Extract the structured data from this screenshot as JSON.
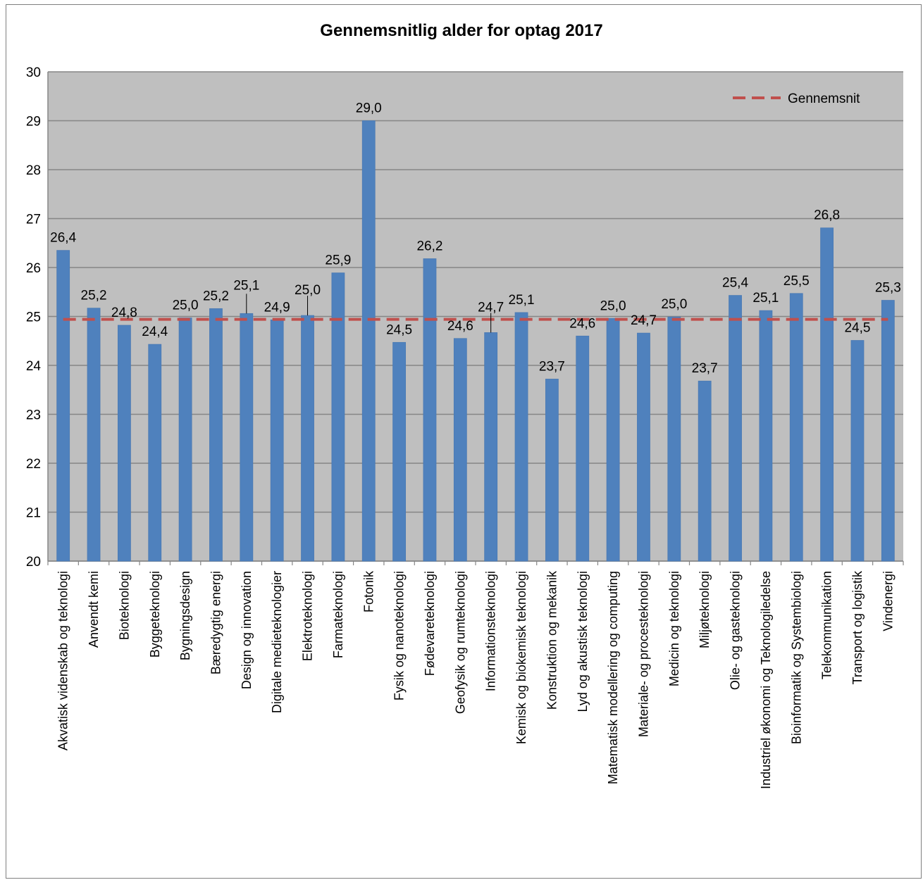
{
  "chart_data": {
    "type": "bar",
    "title": "Gennemsnitlig alder for optag 2017",
    "xlabel": "",
    "ylabel": "",
    "ylim": [
      20,
      30
    ],
    "yticks": [
      20,
      21,
      22,
      23,
      24,
      25,
      26,
      27,
      28,
      29,
      30
    ],
    "grid": true,
    "legend_position": "top-right",
    "categories": [
      "Akvatisk videnskab og teknologi",
      "Anvendt kemi",
      "Bioteknologi",
      "Byggeteknologi",
      "Bygningsdesign",
      "Bæredygtig energi",
      "Design og innovation",
      "Digitale medieteknologier",
      "Elektroteknologi",
      "Farmateknologi",
      "Fotonik",
      "Fysik og nanoteknologi",
      "Fødevareteknologi",
      "Geofysik og rumteknologi",
      "Informationsteknologi",
      "Kemisk og biokemisk teknologi",
      "Konstruktion og mekanik",
      "Lyd og akustisk teknologi",
      "Matematisk modellering og computing",
      "Materiale- og procesteknologi",
      "Medicin og teknologi",
      "Miljøteknologi",
      "Olie- og gasteknologi",
      "Industriel økonomi og Teknologiledelse",
      "Bioinformatik og Systembiologi",
      "Telekommunikation",
      "Transport og logistik",
      "Vindenergi"
    ],
    "values": [
      26.35,
      25.17,
      24.82,
      24.43,
      24.97,
      25.16,
      25.06,
      24.93,
      25.02,
      25.89,
      29.0,
      24.47,
      26.18,
      24.55,
      24.67,
      25.08,
      23.72,
      24.6,
      24.96,
      24.66,
      24.99,
      23.68,
      25.43,
      25.12,
      25.47,
      26.81,
      24.51,
      25.33
    ],
    "data_labels": [
      "26,4",
      "25,2",
      "24,8",
      "24,4",
      "25,0",
      "25,2",
      "25,1",
      "24,9",
      "25,0",
      "25,9",
      "29,0",
      "24,5",
      "26,2",
      "24,6",
      "24,7",
      "25,1",
      "23,7",
      "24,6",
      "25,0",
      "24,7",
      "25,0",
      "23,7",
      "25,4",
      "25,1",
      "25,5",
      "26,8",
      "24,5",
      "25,3"
    ],
    "reference_line": {
      "name": "Gennemsnit",
      "value": 24.94
    },
    "colors": {
      "bar": "#4f81bd",
      "bar_edge": "#4a7ab4",
      "average_line": "#c0504d",
      "plot_background": "#bfbfbf",
      "gridline": "#868686"
    }
  }
}
